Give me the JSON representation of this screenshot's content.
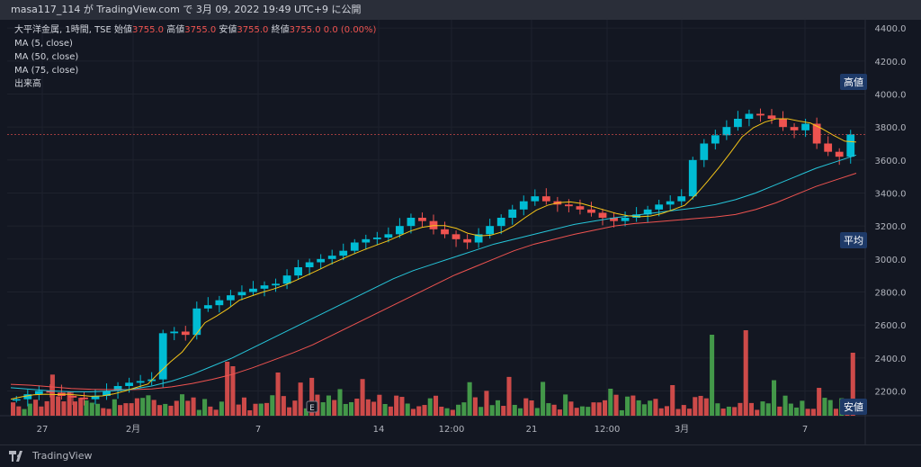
{
  "topbar": {
    "text": "masa117_114 が TradingView.com で 3月 09, 2022 19:49 UTC+9 に公開"
  },
  "legend": {
    "symbol": "大平洋金属, 1時間, TSE",
    "open_label": "始値",
    "open": "3755.0",
    "high_label": "高値",
    "high": "3755.0",
    "low_label": "安値",
    "low": "3755.0",
    "close_label": "終値",
    "close": "3755.0",
    "change": "0.0 (0.00%)",
    "ma5": "MA (5, close)",
    "ma50": "MA (50, close)",
    "ma75": "MA (75, close)",
    "volume": "出来高"
  },
  "tags": {
    "high": "高値",
    "avg": "平均",
    "low": "安値"
  },
  "event_marker": "E",
  "brand": {
    "name": "TradingView"
  },
  "colors": {
    "background": "#131722",
    "up": "#26a69a",
    "up_candle": "#00bcd4",
    "down": "#ef5350",
    "ma5": "#f5c518",
    "ma50": "#26c6da",
    "ma75": "#ef5350"
  },
  "chart_data": {
    "type": "candlestick",
    "y_ticks": [
      2200,
      2400,
      2600,
      2800,
      3000,
      3200,
      3400,
      3600,
      3800,
      4000,
      4200,
      4400
    ],
    "y_tick_labels": [
      "2200.0",
      "2400.0",
      "2600.0",
      "2800.0",
      "3000.0",
      "3200.0",
      "3400.0",
      "3600.0",
      "3800.0",
      "4000.0",
      "4200.0",
      "4400.0"
    ],
    "ylim": [
      2050,
      4450
    ],
    "x_tick_labels": [
      "27",
      "2月",
      "7",
      "14",
      "12:00",
      "21",
      "12:00",
      "3月",
      "7"
    ],
    "last_price": 3755.0,
    "close_series": [
      2150,
      2180,
      2200,
      2190,
      2170,
      2160,
      2150,
      2170,
      2200,
      2230,
      2250,
      2260,
      2270,
      2550,
      2560,
      2540,
      2700,
      2720,
      2750,
      2780,
      2800,
      2820,
      2840,
      2850,
      2900,
      2950,
      2980,
      3000,
      3020,
      3050,
      3100,
      3120,
      3130,
      3150,
      3200,
      3250,
      3230,
      3180,
      3150,
      3120,
      3100,
      3150,
      3200,
      3250,
      3300,
      3350,
      3380,
      3350,
      3330,
      3320,
      3300,
      3280,
      3250,
      3230,
      3250,
      3270,
      3300,
      3330,
      3350,
      3380,
      3600,
      3700,
      3750,
      3800,
      3850,
      3880,
      3870,
      3850,
      3800,
      3780,
      3820,
      3700,
      3650,
      3620,
      3755
    ],
    "ma50_series": [
      2220,
      2210,
      2200,
      2195,
      2195,
      2200,
      2210,
      2230,
      2260,
      2300,
      2350,
      2400,
      2460,
      2520,
      2580,
      2640,
      2700,
      2760,
      2820,
      2880,
      2930,
      2970,
      3010,
      3050,
      3090,
      3120,
      3150,
      3180,
      3210,
      3230,
      3250,
      3265,
      3280,
      3295,
      3310,
      3330,
      3360,
      3400,
      3450,
      3500,
      3550,
      3590,
      3630
    ],
    "ma75_series": [
      2240,
      2235,
      2225,
      2215,
      2210,
      2208,
      2208,
      2212,
      2225,
      2245,
      2270,
      2300,
      2340,
      2385,
      2430,
      2480,
      2540,
      2600,
      2660,
      2720,
      2780,
      2840,
      2900,
      2950,
      3000,
      3050,
      3090,
      3120,
      3150,
      3175,
      3200,
      3215,
      3225,
      3235,
      3245,
      3255,
      3270,
      3300,
      3340,
      3390,
      3440,
      3480,
      3520
    ]
  }
}
